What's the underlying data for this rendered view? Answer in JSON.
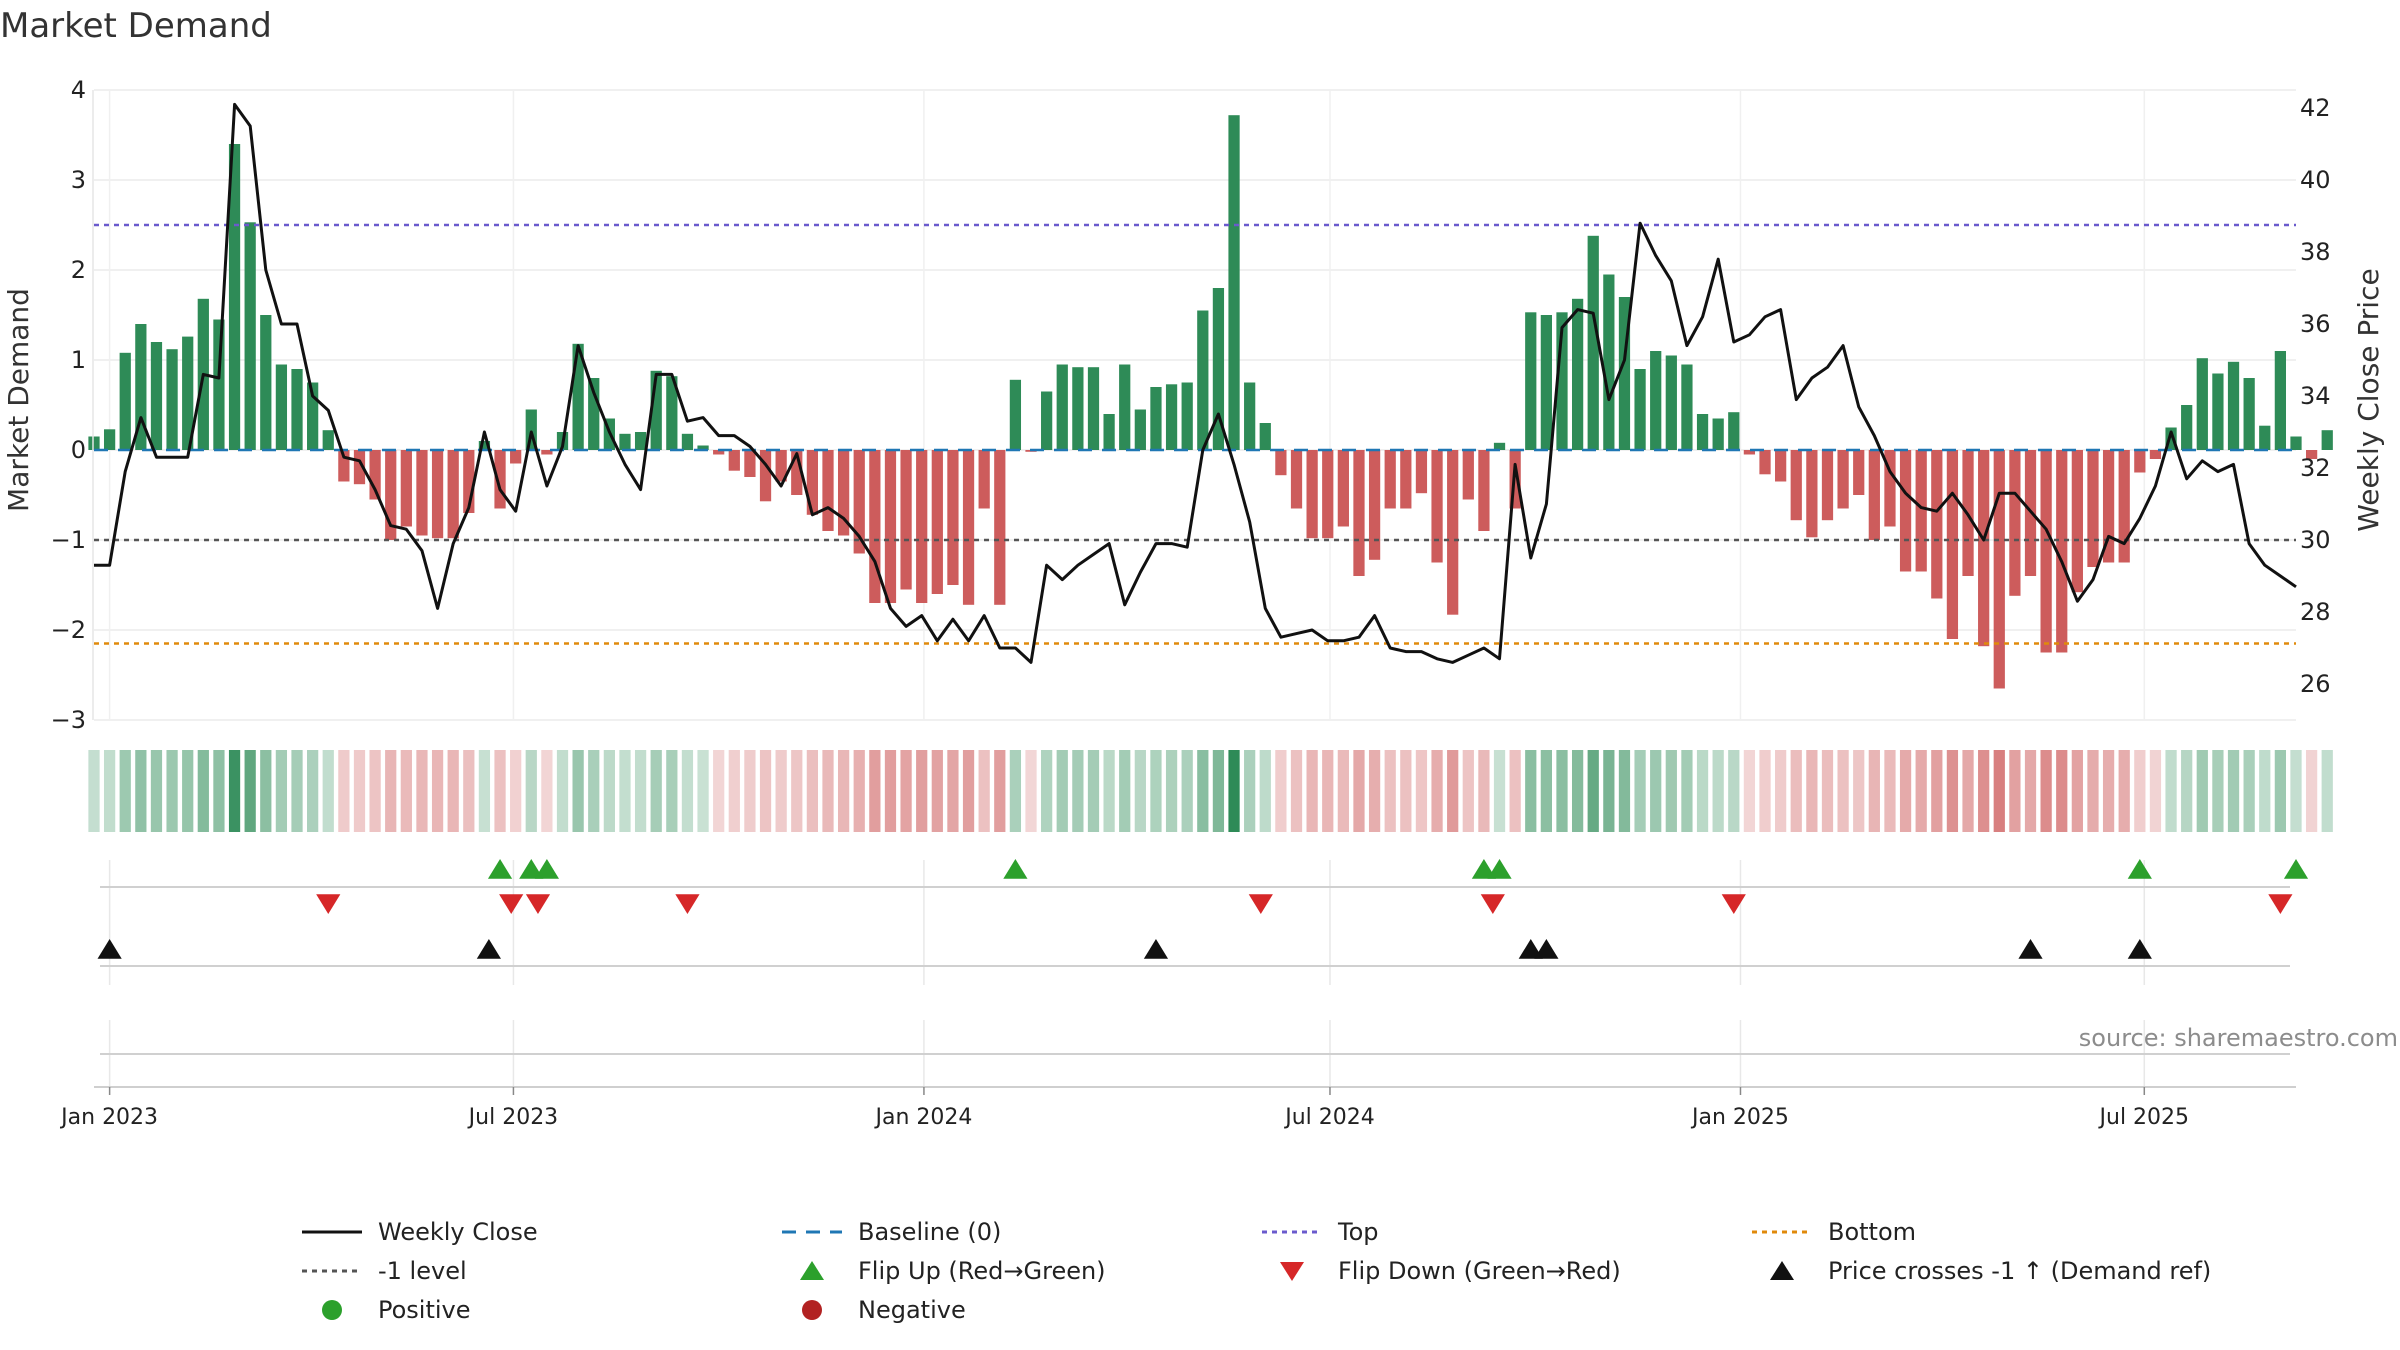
{
  "title": "Market Demand",
  "source": "source: sharemaestro.com",
  "colors": {
    "positive": "#2e8b57",
    "negative": "#cd5c5c",
    "price_line": "#111111",
    "baseline": "#1f77b4",
    "top": "#6a5acd",
    "bottom": "#e08a0b",
    "minus_one": "#555555",
    "flip_up": "#2ca02c",
    "flip_down": "#d62728",
    "cross": "#111111",
    "positive_dot": "#2ca02c",
    "negative_dot": "#b22222"
  },
  "legend": [
    {
      "label": "Weekly Close",
      "type": "solid-line",
      "color": "#111111"
    },
    {
      "label": "Baseline (0)",
      "type": "dashed-line",
      "color": "#1f77b4"
    },
    {
      "label": "Top",
      "type": "dotted-line",
      "color": "#6a5acd"
    },
    {
      "label": "Bottom",
      "type": "dotted-line",
      "color": "#e08a0b"
    },
    {
      "label": "-1 level",
      "type": "dotted-line",
      "color": "#555555"
    },
    {
      "label": "Flip Up (Red→Green)",
      "type": "triangle-up",
      "color": "#2ca02c"
    },
    {
      "label": "Flip Down (Green→Red)",
      "type": "triangle-down",
      "color": "#d62728"
    },
    {
      "label": "Price crosses -1 ↑ (Demand ref)",
      "type": "triangle-up",
      "color": "#111111"
    },
    {
      "label": "Positive",
      "type": "dot",
      "color": "#2ca02c"
    },
    {
      "label": "Negative",
      "type": "dot",
      "color": "#b22222"
    }
  ],
  "chart_data": {
    "type": "bar",
    "title": "Market Demand",
    "ylabel": "Market Demand",
    "y2label": "Weekly Close Price",
    "ylim": [
      -3,
      4
    ],
    "y2lim": [
      25,
      42.5
    ],
    "y_ticks": [
      "−3",
      "−2",
      "−1",
      "0",
      "1",
      "2",
      "3",
      "4"
    ],
    "y2_ticks": [
      "26",
      "28",
      "30",
      "32",
      "34",
      "36",
      "38",
      "40",
      "42"
    ],
    "x_start": "2022-12-25",
    "x_end": "2025-09-07",
    "x_ticks": [
      {
        "label": "Jan 2023",
        "date": "2023-01-01"
      },
      {
        "label": "Jul 2023",
        "date": "2023-07-01"
      },
      {
        "label": "Jan 2024",
        "date": "2024-01-01"
      },
      {
        "label": "Jul 2024",
        "date": "2024-07-01"
      },
      {
        "label": "Jan 2025",
        "date": "2025-01-01"
      },
      {
        "label": "Jul 2025",
        "date": "2025-07-01"
      }
    ],
    "reference_lines": {
      "baseline": 0,
      "top": 2.5,
      "bottom": -2.15,
      "minus_one": -1
    },
    "bar_start": "2022-12-25",
    "bar_step_days": 7,
    "demand": [
      0.15,
      0.23,
      1.08,
      1.4,
      1.2,
      1.12,
      1.26,
      1.68,
      1.45,
      3.4,
      2.53,
      1.5,
      0.95,
      0.9,
      0.75,
      0.22,
      -0.35,
      -0.38,
      -0.55,
      -1.0,
      -0.85,
      -0.95,
      -0.98,
      -0.98,
      -0.7,
      0.1,
      -0.65,
      -0.15,
      0.45,
      -0.05,
      0.2,
      1.18,
      0.8,
      0.35,
      0.18,
      0.2,
      0.88,
      0.82,
      0.18,
      0.05,
      -0.05,
      -0.23,
      -0.3,
      -0.57,
      -0.35,
      -0.5,
      -0.72,
      -0.9,
      -0.95,
      -1.15,
      -1.7,
      -1.7,
      -1.55,
      -1.7,
      -1.6,
      -1.5,
      -1.72,
      -0.65,
      -1.72,
      0.78,
      -0.02,
      0.65,
      0.95,
      0.92,
      0.92,
      0.4,
      0.95,
      0.45,
      0.7,
      0.73,
      0.75,
      1.55,
      1.8,
      3.72,
      0.75,
      0.3,
      -0.28,
      -0.65,
      -0.98,
      -0.98,
      -0.85,
      -1.4,
      -1.22,
      -0.65,
      -0.65,
      -0.48,
      -1.25,
      -1.83,
      -0.55,
      -0.9,
      0.08,
      -0.65,
      1.53,
      1.5,
      1.53,
      1.68,
      2.38,
      1.95,
      1.7,
      0.9,
      1.1,
      1.05,
      0.95,
      0.4,
      0.35,
      0.42,
      -0.05,
      -0.27,
      -0.35,
      -0.78,
      -0.97,
      -0.78,
      -0.65,
      -0.5,
      -1.0,
      -0.85,
      -1.35,
      -1.35,
      -1.65,
      -2.1,
      -1.4,
      -2.18,
      -2.65,
      -1.62,
      -1.4,
      -2.25,
      -2.25,
      -1.58,
      -1.3,
      -1.25,
      -1.25,
      -0.25,
      -0.1,
      0.25,
      0.5,
      1.02,
      0.85,
      0.98,
      0.8,
      0.27,
      1.1,
      0.15,
      -0.1,
      0.22
    ],
    "price_start": "2022-12-25",
    "price_step_days": 7,
    "price": [
      29.3,
      29.3,
      31.9,
      33.4,
      32.3,
      32.3,
      32.3,
      34.6,
      34.5,
      42.1,
      41.5,
      37.5,
      36.0,
      36.0,
      34.0,
      33.6,
      32.3,
      32.2,
      31.4,
      30.4,
      30.3,
      29.7,
      28.1,
      29.9,
      30.9,
      33.0,
      31.4,
      30.8,
      33.0,
      31.5,
      32.6,
      35.4,
      34.1,
      33.0,
      32.1,
      31.4,
      34.6,
      34.6,
      33.3,
      33.4,
      32.9,
      32.9,
      32.6,
      32.1,
      31.5,
      32.4,
      30.7,
      30.9,
      30.6,
      30.1,
      29.4,
      28.1,
      27.6,
      27.9,
      27.2,
      27.8,
      27.2,
      27.9,
      27.0,
      27.0,
      26.6,
      29.3,
      28.9,
      29.3,
      29.6,
      29.9,
      28.2,
      29.1,
      29.9,
      29.9,
      29.8,
      32.5,
      33.5,
      32.1,
      30.5,
      28.1,
      27.3,
      27.4,
      27.5,
      27.2,
      27.2,
      27.3,
      27.9,
      27.0,
      26.9,
      26.9,
      26.7,
      26.6,
      26.8,
      27.0,
      26.7,
      32.1,
      29.5,
      31.0,
      35.9,
      36.4,
      36.3,
      33.9,
      35.0,
      38.8,
      37.9,
      37.2,
      35.4,
      36.2,
      37.8,
      35.5,
      35.7,
      36.2,
      36.4,
      33.9,
      34.5,
      34.8,
      35.4,
      33.7,
      32.9,
      31.9,
      31.3,
      30.9,
      30.8,
      31.3,
      30.7,
      30.0,
      31.3,
      31.3,
      30.8,
      30.3,
      29.4,
      28.3,
      28.9,
      30.1,
      29.9,
      30.6,
      31.5,
      33.0,
      31.7,
      32.2,
      31.9,
      32.1,
      29.9,
      29.3,
      29.0,
      28.7
    ]
  },
  "color_strip": {
    "description": "per-week demand color band"
  },
  "events": {
    "flip_up": [
      "2023-06-25",
      "2023-07-09",
      "2023-07-16",
      "2024-02-11",
      "2024-09-08",
      "2024-09-15",
      "2025-06-29",
      "2025-09-07"
    ],
    "flip_down": [
      "2023-04-09",
      "2023-06-30",
      "2023-07-12",
      "2023-09-17",
      "2024-05-31",
      "2024-09-12",
      "2024-12-29",
      "2025-08-31"
    ],
    "price_cross": [
      "2023-01-01",
      "2023-06-20",
      "2024-04-14",
      "2024-09-29",
      "2024-10-06",
      "2025-05-11",
      "2025-06-29"
    ]
  }
}
